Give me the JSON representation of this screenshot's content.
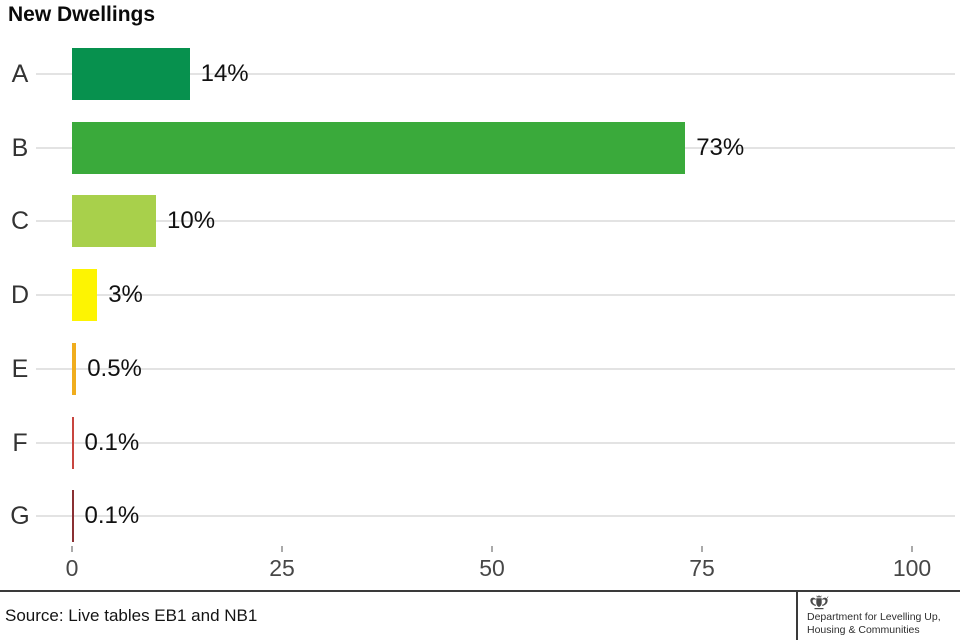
{
  "title": "New Dwellings",
  "chart_data": {
    "type": "bar",
    "orientation": "horizontal",
    "title": "New Dwellings",
    "categories": [
      "A",
      "B",
      "C",
      "D",
      "E",
      "F",
      "G"
    ],
    "values": [
      14,
      73,
      10,
      3,
      0.5,
      0.1,
      0.1
    ],
    "value_labels": [
      "14%",
      "73%",
      "10%",
      "3%",
      "0.5%",
      "0.1%",
      "0.1%"
    ],
    "bar_colors": [
      "#07914E",
      "#3AAA3B",
      "#A8D04B",
      "#FDF402",
      "#F0AD1D",
      "#C8453F",
      "#8A3033"
    ],
    "x_ticks": [
      0,
      25,
      50,
      75,
      100
    ],
    "x_tick_labels": [
      "0",
      "25",
      "50",
      "75",
      "100"
    ],
    "xlim": [
      0,
      100
    ],
    "xlabel": "",
    "ylabel": "",
    "grid": "per-category horizontal gridlines",
    "legend": "none",
    "gridline_color": "#e3e3e3"
  },
  "footer": {
    "source": "Source: Live tables EB1 and NB1",
    "org_line1": "Department for Levelling Up,",
    "org_line2": "Housing & Communities",
    "crest_icon": "uk-royal-coat-of-arms",
    "crest_color": "#4a4a4a"
  }
}
